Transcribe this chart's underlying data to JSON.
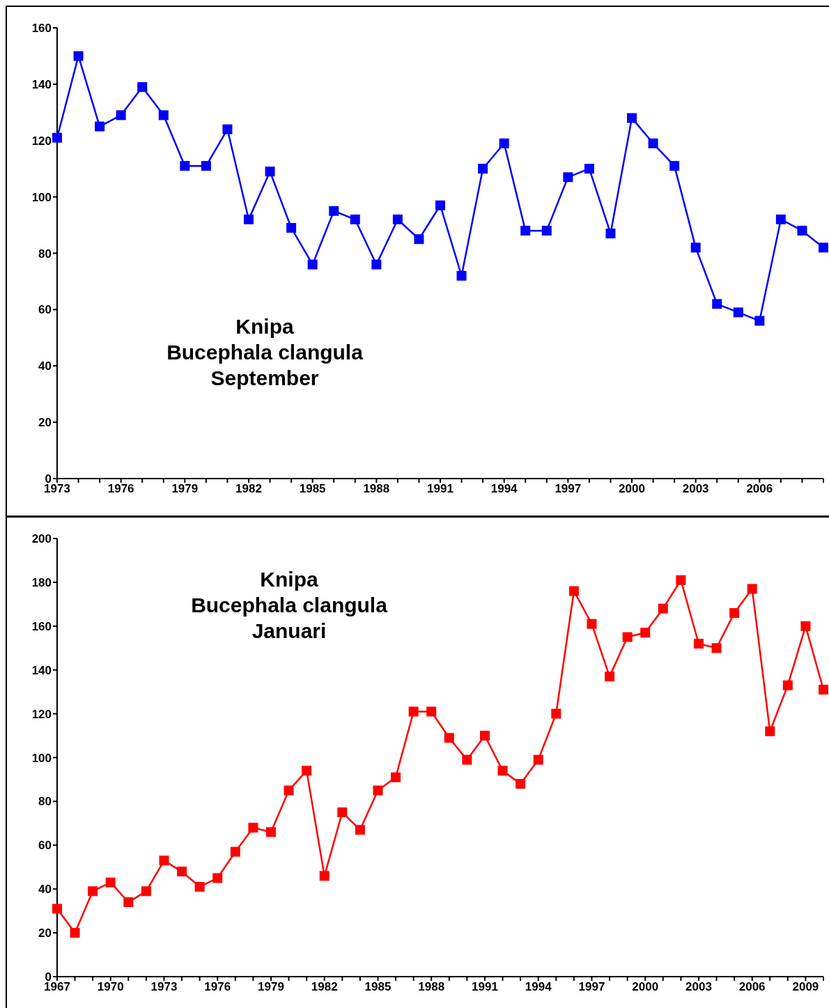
{
  "chart_data": [
    {
      "type": "line",
      "annotations": [
        "Knipa",
        "Bucephala clangula",
        "September"
      ],
      "categories": [
        "1973",
        null,
        null,
        "1976",
        null,
        null,
        "1979",
        null,
        null,
        "1982",
        null,
        null,
        "1985",
        null,
        null,
        "1988",
        null,
        null,
        "1991",
        null,
        null,
        "1994",
        null,
        null,
        "1997",
        null,
        null,
        "2000",
        null,
        null,
        "2003",
        null,
        null,
        "2006",
        null,
        null,
        null
      ],
      "series": [
        {
          "color": "#0000ff",
          "values": [
            121,
            150,
            125,
            129,
            139,
            129,
            111,
            111,
            124,
            92,
            109,
            89,
            76,
            95,
            92,
            76,
            92,
            85,
            97,
            72,
            110,
            119,
            88,
            88,
            107,
            110,
            87,
            128,
            119,
            111,
            82,
            62,
            59,
            56,
            92,
            88,
            82
          ]
        }
      ],
      "ylim": [
        0,
        160
      ],
      "yticks": [
        0,
        20,
        40,
        60,
        80,
        100,
        120,
        140,
        160
      ],
      "marker": "square",
      "grid": false,
      "legend": false
    },
    {
      "type": "line",
      "annotations": [
        "Knipa",
        "Bucephala clangula",
        "Januari"
      ],
      "categories": [
        "1967",
        null,
        null,
        "1970",
        null,
        null,
        "1973",
        null,
        null,
        "1976",
        null,
        null,
        "1979",
        null,
        null,
        "1982",
        null,
        null,
        "1985",
        null,
        null,
        "1988",
        null,
        null,
        "1991",
        null,
        null,
        "1994",
        null,
        null,
        "1997",
        null,
        null,
        "2000",
        null,
        null,
        "2003",
        null,
        null,
        "2006",
        null,
        null,
        "2009",
        null
      ],
      "series": [
        {
          "color": "#ff0000",
          "values": [
            31,
            20,
            39,
            43,
            34,
            39,
            53,
            48,
            41,
            45,
            57,
            68,
            66,
            85,
            94,
            46,
            75,
            67,
            85,
            91,
            121,
            121,
            109,
            99,
            110,
            94,
            88,
            99,
            120,
            176,
            161,
            137,
            155,
            157,
            168,
            181,
            152,
            150,
            166,
            177,
            112,
            133,
            160,
            131
          ]
        }
      ],
      "ylim": [
        0,
        200
      ],
      "yticks": [
        0,
        20,
        40,
        60,
        80,
        100,
        120,
        140,
        160,
        180,
        200
      ],
      "marker": "square",
      "grid": false,
      "legend": false
    }
  ]
}
